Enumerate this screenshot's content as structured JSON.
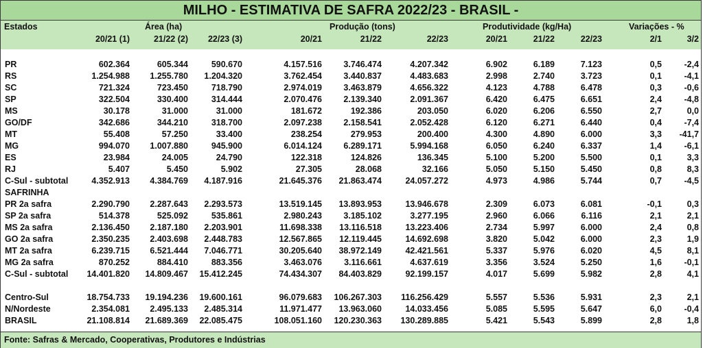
{
  "title": "MILHO - ESTIMATIVA DE SAFRA 2022/23 - BRASIL -",
  "header": {
    "estados": "Estados",
    "area": "Área (ha)",
    "producao": "Produção (tons)",
    "produtividade": "Produtividade (kg/Ha)",
    "variacoes": "Variações - %",
    "sub": [
      "20/21 (1)",
      "21/22 (2)",
      "22/23 (3)",
      "20/21",
      "21/22",
      "22/23",
      "20/21",
      "21/22",
      "22/23",
      "2/1",
      "3/2"
    ]
  },
  "rows": [
    {
      "name": "PR",
      "v": [
        "602.364",
        "605.344",
        "590.670",
        "4.157.516",
        "3.746.474",
        "4.207.342",
        "6.902",
        "6.189",
        "7.123",
        "0,5",
        "-2,4"
      ]
    },
    {
      "name": "RS",
      "v": [
        "1.254.988",
        "1.255.780",
        "1.204.320",
        "3.762.454",
        "3.440.837",
        "4.483.683",
        "2.998",
        "2.740",
        "3.723",
        "0,1",
        "-4,1"
      ]
    },
    {
      "name": "SC",
      "v": [
        "721.324",
        "723.450",
        "718.790",
        "2.974.019",
        "3.463.879",
        "4.656.322",
        "4.123",
        "4.788",
        "6.478",
        "0,3",
        "-0,6"
      ]
    },
    {
      "name": "SP",
      "v": [
        "322.504",
        "330.400",
        "314.444",
        "2.070.476",
        "2.139.340",
        "2.091.367",
        "6.420",
        "6.475",
        "6.651",
        "2,4",
        "-4,8"
      ]
    },
    {
      "name": "MS",
      "v": [
        "30.178",
        "31.000",
        "31.000",
        "181.672",
        "192.386",
        "203.050",
        "6.020",
        "6.206",
        "6.550",
        "2,7",
        "0,0"
      ]
    },
    {
      "name": "GO/DF",
      "v": [
        "342.686",
        "344.210",
        "318.700",
        "2.097.238",
        "2.158.541",
        "2.052.428",
        "6.120",
        "6.271",
        "6.440",
        "0,4",
        "-7,4"
      ]
    },
    {
      "name": "MT",
      "v": [
        "55.408",
        "57.250",
        "33.400",
        "238.254",
        "279.953",
        "200.400",
        "4.300",
        "4.890",
        "6.000",
        "3,3",
        "-41,7"
      ]
    },
    {
      "name": "MG",
      "v": [
        "994.070",
        "1.007.880",
        "945.900",
        "6.014.124",
        "6.289.171",
        "5.994.168",
        "6.050",
        "6.240",
        "6.337",
        "1,4",
        "-6,1"
      ]
    },
    {
      "name": "ES",
      "v": [
        "23.984",
        "24.005",
        "24.790",
        "122.318",
        "124.826",
        "136.345",
        "5.100",
        "5.200",
        "5.500",
        "0,1",
        "3,3"
      ]
    },
    {
      "name": "RJ",
      "v": [
        "5.407",
        "5.450",
        "5.902",
        "27.305",
        "28.068",
        "32.166",
        "5.050",
        "5.150",
        "5.450",
        "0,8",
        "8,3"
      ]
    },
    {
      "name": "C-Sul - subtotal",
      "v": [
        "4.352.913",
        "4.384.769",
        "4.187.916",
        "21.645.376",
        "21.863.474",
        "24.057.272",
        "4.973",
        "4.986",
        "5.744",
        "0,7",
        "-4,5"
      ]
    },
    {
      "name": "SAFRINHA",
      "v": [
        "",
        "",
        "",
        "",
        "",
        "",
        "",
        "",
        "",
        "",
        ""
      ]
    },
    {
      "name": "PR 2a safra",
      "v": [
        "2.290.790",
        "2.287.643",
        "2.293.573",
        "13.519.145",
        "13.893.953",
        "13.946.678",
        "2.309",
        "6.073",
        "6.081",
        "-0,1",
        "0,3"
      ]
    },
    {
      "name": "SP 2a safra",
      "v": [
        "514.378",
        "525.092",
        "535.861",
        "2.980.243",
        "3.185.102",
        "3.277.195",
        "2.960",
        "6.066",
        "6.116",
        "2,1",
        "2,1"
      ]
    },
    {
      "name": "MS 2a safra",
      "v": [
        "2.136.450",
        "2.187.180",
        "2.203.901",
        "11.698.338",
        "13.116.518",
        "13.223.406",
        "2.734",
        "5.997",
        "6.000",
        "2,4",
        "0,8"
      ]
    },
    {
      "name": "GO 2a safra",
      "v": [
        "2.350.235",
        "2.403.698",
        "2.448.783",
        "12.567.865",
        "12.119.445",
        "14.692.698",
        "3.820",
        "5.042",
        "6.000",
        "2,3",
        "1,9"
      ]
    },
    {
      "name": "MT 2a safra",
      "v": [
        "6.239.715",
        "6.521.444",
        "7.046.771",
        "30.205.640",
        "38.972.149",
        "42.421.561",
        "5.337",
        "5.976",
        "6.020",
        "4,5",
        "8,1"
      ]
    },
    {
      "name": "MG 2a safra",
      "v": [
        "870.252",
        "884.410",
        "883.356",
        "3.463.076",
        "3.116.661",
        "4.637.619",
        "3.356",
        "3.524",
        "5.250",
        "1,6",
        "-0,1"
      ]
    },
    {
      "name": "C-Sul - subtotal",
      "v": [
        "14.401.820",
        "14.809.467",
        "15.412.245",
        "74.434.307",
        "84.403.829",
        "92.199.157",
        "4.017",
        "5.699",
        "5.982",
        "2,8",
        "4,1"
      ]
    },
    {
      "name": "",
      "v": [
        "",
        "",
        "",
        "",
        "",
        "",
        "",
        "",
        "",
        "",
        ""
      ]
    },
    {
      "name": "Centro-Sul",
      "v": [
        "18.754.733",
        "19.194.236",
        "19.600.161",
        "96.079.683",
        "106.267.303",
        "116.256.429",
        "5.557",
        "5.536",
        "5.931",
        "2,3",
        "2,1"
      ]
    },
    {
      "name": "N/Nordeste",
      "v": [
        "2.354.081",
        "2.495.133",
        "2.485.314",
        "11.971.477",
        "13.963.060",
        "14.033.456",
        "5.085",
        "5.595",
        "5.647",
        "6,0",
        "-0,4"
      ]
    },
    {
      "name": "BRASIL",
      "v": [
        "21.108.814",
        "21.689.369",
        "22.085.475",
        "108.051.160",
        "120.230.363",
        "130.289.885",
        "5.421",
        "5.543",
        "5.899",
        "2,8",
        "1,8"
      ]
    }
  ],
  "footer": "Fonte: Safras & Mercado, Cooperativas, Produtores e Indústrias",
  "colors": {
    "title_bg": "#a8d99a",
    "header_bg": "#c6e6bb"
  }
}
